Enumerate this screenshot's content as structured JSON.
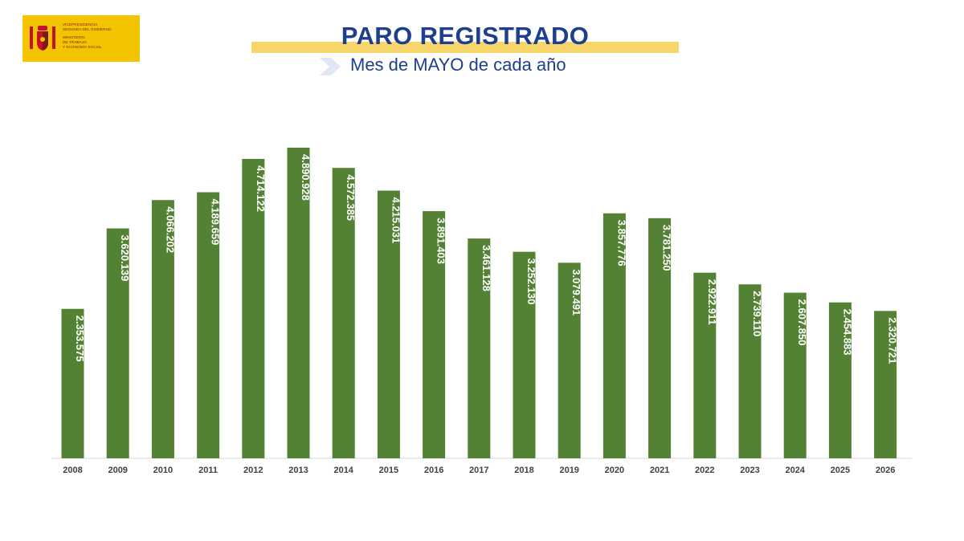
{
  "logo": {
    "lines": [
      "Vicepresidencia",
      "Segunda del Gobierno",
      "Ministerio",
      "de Trabajo",
      "y Economía Social"
    ],
    "icon": "spain-coat-of-arms-icon"
  },
  "header": {
    "title": "PARO REGISTRADO",
    "subtitle": "Mes de MAYO de cada año"
  },
  "colors": {
    "bar": "#548235",
    "title": "#1e3f8c",
    "title_band": "#f6d66a",
    "logo_bg": "#f5c400"
  },
  "chart_data": {
    "type": "bar",
    "categories": [
      "2008",
      "2009",
      "2010",
      "2011",
      "2012",
      "2013",
      "2014",
      "2015",
      "2016",
      "2017",
      "2018",
      "2019",
      "2020",
      "2021",
      "2022",
      "2023",
      "2024",
      "2025",
      "2026"
    ],
    "values": [
      2353575,
      3620139,
      4066202,
      4189659,
      4714122,
      4890928,
      4572385,
      4215031,
      3891403,
      3461128,
      3252130,
      3079491,
      3857776,
      3781250,
      2922911,
      2739110,
      2607850,
      2454883,
      2320721
    ],
    "data_labels": [
      "2.353.575",
      "3.620.139",
      "4.066.202",
      "4.189.659",
      "4.714.122",
      "4.890.928",
      "4.572.385",
      "4.215.031",
      "3.891.403",
      "3.461.128",
      "3.252.130",
      "3.079.491",
      "3.857.776",
      "3.781.250",
      "2.922.911",
      "2.739.110",
      "2.607.850",
      "2.454.883",
      "2.320.721"
    ],
    "title": "",
    "xlabel": "",
    "ylabel": "",
    "ylim": [
      0,
      4890928
    ],
    "grid": false,
    "legend": "none"
  }
}
